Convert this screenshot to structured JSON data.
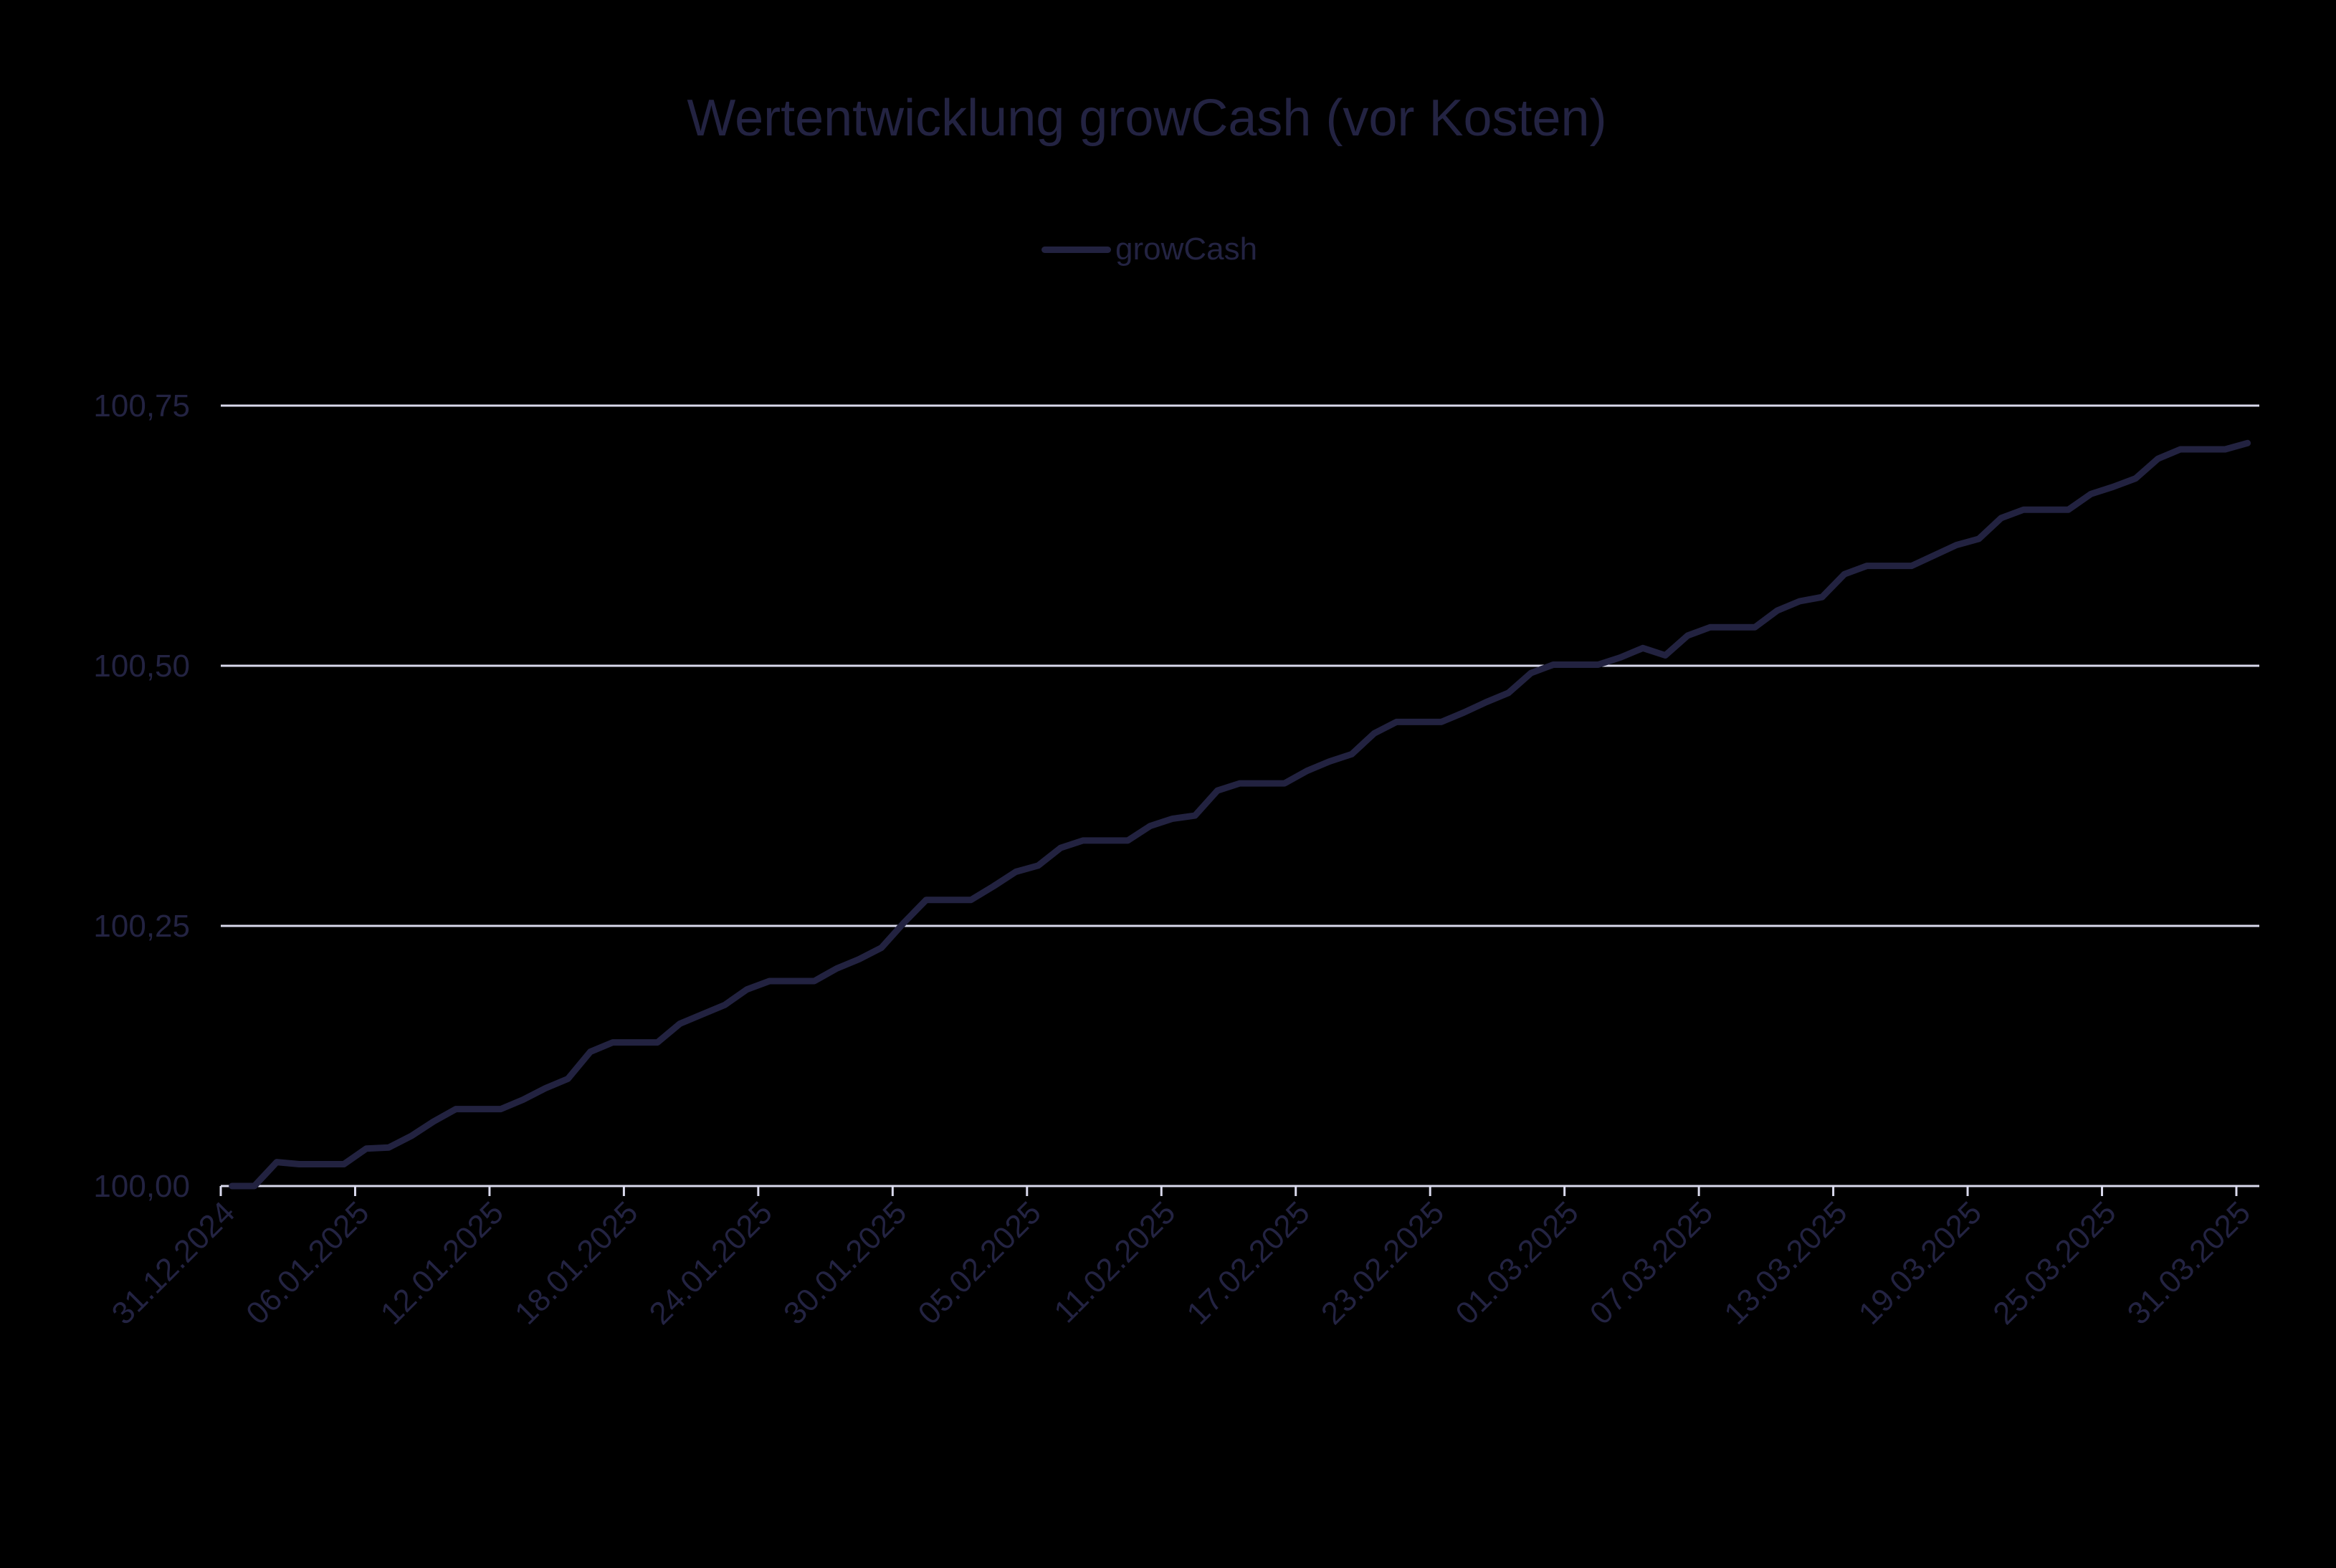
{
  "chart": {
    "title": "Wertentwicklung growCash (vor Kosten)",
    "legend_label": "growCash"
  },
  "colors": {
    "background": "#000000",
    "line": "#222240",
    "text": "#232342",
    "grid": "#d9d9ec"
  },
  "chart_data": {
    "type": "line",
    "title": "Wertentwicklung growCash (vor Kosten)",
    "xlabel": "",
    "ylabel": "",
    "ylim": [
      100.0,
      100.75
    ],
    "grid": true,
    "legend_position": "top",
    "y_ticks": [
      "100,00",
      "100,25",
      "100,50",
      "100,75"
    ],
    "y_tick_values": [
      100.0,
      100.25,
      100.5,
      100.75
    ],
    "x_tick_labels": [
      "31.12.2024",
      "06.01.2025",
      "12.01.2025",
      "18.01.2025",
      "24.01.2025",
      "30.01.2025",
      "05.02.2025",
      "11.02.2025",
      "17.02.2025",
      "23.02.2025",
      "01.03.2025",
      "07.03.2025",
      "13.03.2025",
      "19.03.2025",
      "25.03.2025",
      "31.03.2025"
    ],
    "x_start": "31.12.2024",
    "x_end": "31.03.2025",
    "x_step": "1 day",
    "series": [
      {
        "name": "growCash",
        "values": [
          100.0,
          100.0,
          100.023,
          100.021,
          100.021,
          100.021,
          100.036,
          100.037,
          100.048,
          100.062,
          100.074,
          100.074,
          100.074,
          100.083,
          100.094,
          100.103,
          100.129,
          100.138,
          100.138,
          100.138,
          100.156,
          100.165,
          100.174,
          100.189,
          100.197,
          100.197,
          100.197,
          100.209,
          100.218,
          100.229,
          100.253,
          100.275,
          100.275,
          100.275,
          100.288,
          100.302,
          100.308,
          100.325,
          100.332,
          100.332,
          100.332,
          100.346,
          100.353,
          100.356,
          100.38,
          100.387,
          100.387,
          100.387,
          100.399,
          100.408,
          100.415,
          100.435,
          100.446,
          100.446,
          100.446,
          100.455,
          100.465,
          100.474,
          100.493,
          100.501,
          100.501,
          100.501,
          100.508,
          100.517,
          100.51,
          100.529,
          100.537,
          100.537,
          100.537,
          100.553,
          100.562,
          100.566,
          100.588,
          100.596,
          100.596,
          100.596,
          100.606,
          100.616,
          100.622,
          100.642,
          100.65,
          100.65,
          100.65,
          100.665,
          100.672,
          100.68,
          100.699,
          100.708,
          100.708,
          100.708,
          100.714
        ]
      }
    ]
  }
}
